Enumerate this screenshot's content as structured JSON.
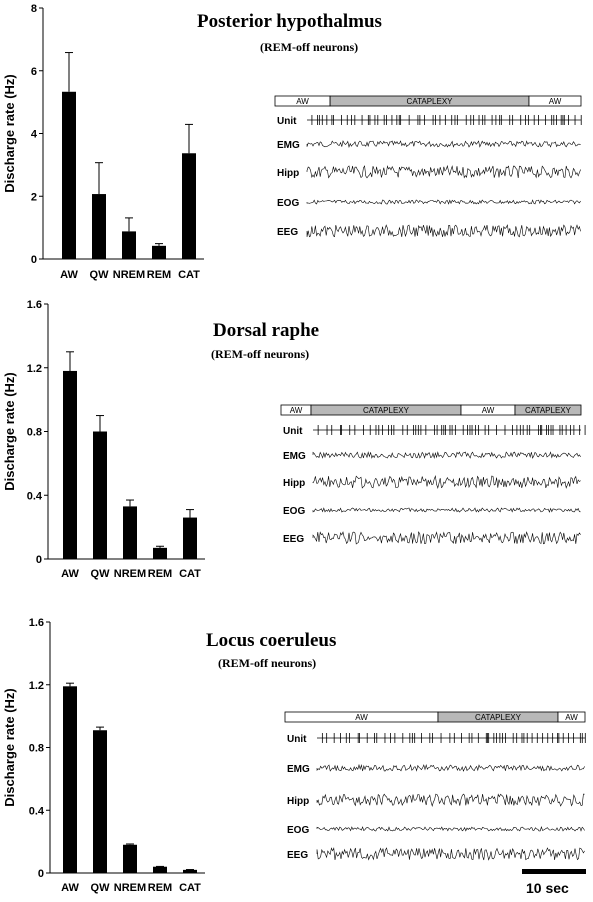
{
  "units": {
    "ylabel": "Discharge rate (Hz)",
    "time_scale": "10 sec"
  },
  "chart_data": [
    {
      "type": "bar",
      "title": "Posterior hypothalmus",
      "subtitle": "(REM-off neurons)",
      "categories": [
        "AW",
        "QW",
        "NREM",
        "REM",
        "CAT"
      ],
      "values": [
        5.33,
        2.07,
        0.88,
        0.42,
        3.37
      ],
      "errors": [
        1.25,
        1.0,
        0.43,
        0.07,
        0.92
      ],
      "ylabel": "Discharge rate (Hz)",
      "ylim": [
        0,
        8
      ],
      "yticks": [
        "0",
        "2",
        "4",
        "6",
        "8"
      ],
      "trace": {
        "states": [
          {
            "label": "AW",
            "fraction": 0.18,
            "shaded": false
          },
          {
            "label": "CATAPLEXY",
            "fraction": 0.65,
            "shaded": true
          },
          {
            "label": "AW",
            "fraction": 0.17,
            "shaded": false
          }
        ],
        "channels": [
          "Unit",
          "EMG",
          "Hipp",
          "EOG",
          "EEG"
        ]
      }
    },
    {
      "type": "bar",
      "title": "Dorsal raphe",
      "subtitle": "(REM-off neurons)",
      "categories": [
        "AW",
        "QW",
        "NREM",
        "REM",
        "CAT"
      ],
      "values": [
        1.18,
        0.8,
        0.33,
        0.07,
        0.26
      ],
      "errors": [
        0.12,
        0.1,
        0.04,
        0.01,
        0.05
      ],
      "ylabel": "Discharge rate (Hz)",
      "ylim": [
        0,
        1.6
      ],
      "yticks": [
        "0",
        "0.4",
        "0.8",
        "1.2",
        "1.6"
      ],
      "trace": {
        "states": [
          {
            "label": "AW",
            "fraction": 0.1,
            "shaded": false
          },
          {
            "label": "CATAPLEXY",
            "fraction": 0.5,
            "shaded": true
          },
          {
            "label": "AW",
            "fraction": 0.18,
            "shaded": false
          },
          {
            "label": "CATAPLEXY",
            "fraction": 0.22,
            "shaded": true
          }
        ],
        "channels": [
          "Unit",
          "EMG",
          "Hipp",
          "EOG",
          "EEG"
        ]
      }
    },
    {
      "type": "bar",
      "title": "Locus coeruleus",
      "subtitle": "(REM-off neurons)",
      "categories": [
        "AW",
        "QW",
        "NREM",
        "REM",
        "CAT"
      ],
      "values": [
        1.19,
        0.91,
        0.18,
        0.04,
        0.02
      ],
      "errors": [
        0.02,
        0.02,
        0.005,
        0.002,
        0.002
      ],
      "ylabel": "Discharge rate (Hz)",
      "ylim": [
        0,
        1.6
      ],
      "yticks": [
        "0",
        "0.4",
        "0.8",
        "1.2",
        "1.6"
      ],
      "trace": {
        "states": [
          {
            "label": "AW",
            "fraction": 0.51,
            "shaded": false
          },
          {
            "label": "CATAPLEXY",
            "fraction": 0.4,
            "shaded": true
          },
          {
            "label": "AW",
            "fraction": 0.09,
            "shaded": false
          }
        ],
        "channels": [
          "Unit",
          "EMG",
          "Hipp",
          "EOG",
          "EEG"
        ]
      }
    }
  ]
}
